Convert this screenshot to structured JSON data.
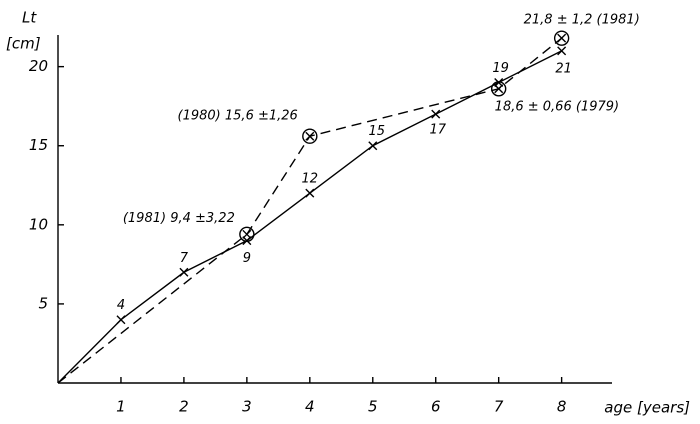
{
  "chart_data": {
    "type": "line",
    "x_label": "age [years]",
    "y_label": [
      "Lt",
      "[cm]"
    ],
    "xlim": [
      0,
      8.8
    ],
    "ylim": [
      0,
      22
    ],
    "xticks": [
      1,
      2,
      3,
      4,
      5,
      6,
      7,
      8
    ],
    "yticks": [
      5,
      10,
      15,
      20
    ],
    "series": [
      {
        "style": "solid",
        "marker": "x",
        "color": "#000000",
        "x": [
          0,
          1,
          2,
          3,
          4,
          5,
          6,
          7,
          8
        ],
        "values": [
          0,
          4,
          7,
          9,
          12,
          15,
          17,
          19,
          21
        ],
        "value_labels": [
          null,
          "4",
          "7",
          "9",
          "12",
          "15",
          "17",
          "19",
          "21"
        ]
      },
      {
        "style": "dashed",
        "marker": "circled-x",
        "color": "#000000",
        "x": [
          0,
          3,
          4,
          7,
          8
        ],
        "values": [
          0,
          9.4,
          15.6,
          18.6,
          21.8
        ],
        "value_labels": [
          null,
          "(1981) 9,4 ±3,22",
          "(1980) 15,6 ±1,26",
          "18,6 ± 0,66 (1979)",
          "21,8 ± 1,2 (1981)"
        ]
      }
    ]
  }
}
